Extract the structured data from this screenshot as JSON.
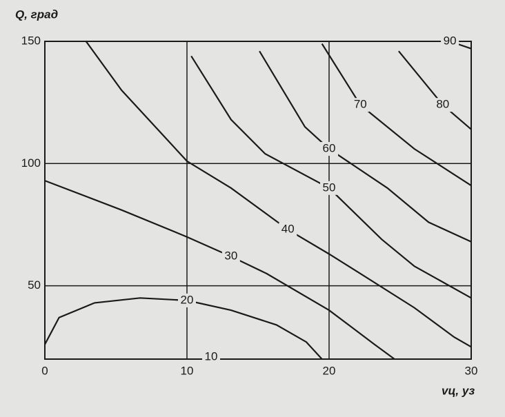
{
  "chart_data": {
    "type": "contour",
    "y_label": "Q, град",
    "x_label": "vц, уз",
    "xlim": [
      0,
      30
    ],
    "ylim": [
      20,
      150
    ],
    "xticks": [
      0,
      10,
      20,
      30
    ],
    "yticks": [
      50,
      100,
      150
    ],
    "grid": true,
    "color": "#1a1a1a",
    "series": [
      {
        "name": "10",
        "x": [
          11.1,
          11.7,
          12.3
        ],
        "values": [
          20.4,
          20.8,
          20.4
        ]
      },
      {
        "name": "20",
        "x": [
          0,
          1,
          3.5,
          6.7,
          10,
          13.1,
          16.3,
          18.4,
          19.5
        ],
        "values": [
          26,
          37,
          43,
          45,
          44,
          40,
          34,
          27,
          20
        ]
      },
      {
        "name": "30",
        "x": [
          0,
          5.4,
          10,
          13.1,
          15.6,
          20,
          23.2,
          24.6
        ],
        "values": [
          93,
          81,
          70,
          62,
          55,
          40,
          26,
          20
        ]
      },
      {
        "name": "40",
        "x": [
          2.9,
          5.4,
          10,
          13.1,
          17.1,
          20,
          22.2,
          26,
          28.8,
          30
        ],
        "values": [
          150,
          130,
          101,
          90,
          73,
          63,
          55,
          41,
          29,
          25
        ]
      },
      {
        "name": "50",
        "x": [
          10.3,
          13.1,
          15.5,
          20,
          23.7,
          26,
          30
        ],
        "values": [
          144,
          118,
          104,
          90,
          69,
          58,
          45
        ]
      },
      {
        "name": "60",
        "x": [
          15.1,
          18.3,
          20,
          24.1,
          27,
          30
        ],
        "values": [
          146,
          115,
          106,
          90,
          76,
          68
        ]
      },
      {
        "name": "70",
        "x": [
          19.5,
          22.2,
          26,
          30
        ],
        "values": [
          149,
          124,
          106,
          91
        ]
      },
      {
        "name": "80",
        "x": [
          24.9,
          28,
          30
        ],
        "values": [
          146,
          124,
          114
        ]
      },
      {
        "name": "90",
        "x": [
          28.5,
          30
        ],
        "values": [
          150,
          147
        ]
      }
    ]
  }
}
